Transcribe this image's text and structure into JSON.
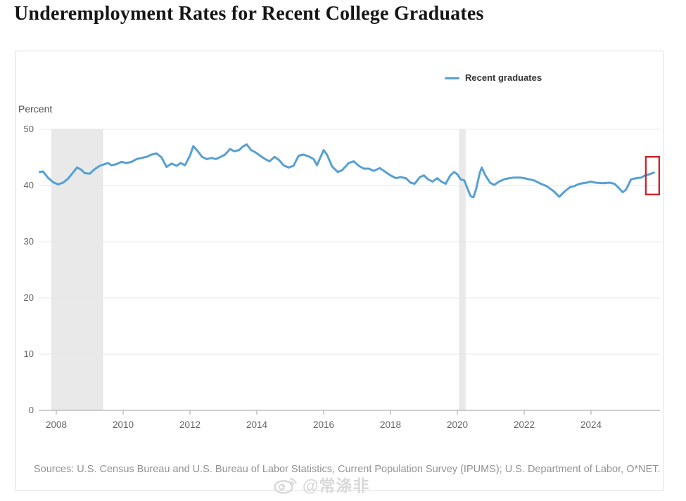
{
  "page": {
    "title": "Underemployment Rates for Recent College Graduates",
    "source_note": "Sources: U.S. Census Bureau and U.S. Bureau of Labor Statistics, Current Population Survey (IPUMS); U.S. Department of Labor, O*NET.",
    "watermark": "@常涤非"
  },
  "chart": {
    "y_axis_label": "Percent",
    "legend": [
      {
        "label": "Recent graduates",
        "color": "#57a0d3"
      }
    ],
    "y_ticks": [
      "50",
      "40",
      "30",
      "20",
      "10",
      "0"
    ],
    "x_ticks": [
      "2008",
      "2010",
      "2012",
      "2014",
      "2016",
      "2018",
      "2020",
      "2022",
      "2024"
    ]
  },
  "chart_data": {
    "type": "line",
    "title": "Underemployment Rates for Recent College Graduates",
    "xlabel": "",
    "ylabel": "Percent",
    "ylim": [
      0,
      50
    ],
    "xlim": [
      2007.4,
      2026.1
    ],
    "grid": "horizontal",
    "legend_position": "top-right",
    "y_tick_values": [
      50,
      40,
      30,
      20,
      10,
      0
    ],
    "x_tick_years": [
      2008,
      2010,
      2012,
      2014,
      2016,
      2018,
      2020,
      2022,
      2024
    ],
    "recession_bands": [
      [
        2007.85,
        2009.4
      ],
      [
        2020.05,
        2020.25
      ]
    ],
    "annotation": {
      "type": "rect",
      "color": "#c9252d",
      "x_range": [
        2025.64,
        2026.04
      ],
      "y_range": [
        38.4,
        45.1
      ],
      "meaning": "highlight of latest readings"
    },
    "series": [
      {
        "name": "Recent graduates",
        "color": "#57a0d3",
        "points": [
          [
            2007.5,
            42.4
          ],
          [
            2007.6,
            42.5
          ],
          [
            2007.75,
            41.4
          ],
          [
            2007.9,
            40.6
          ],
          [
            2008.05,
            40.2
          ],
          [
            2008.2,
            40.5
          ],
          [
            2008.35,
            41.2
          ],
          [
            2008.5,
            42.3
          ],
          [
            2008.62,
            43.2
          ],
          [
            2008.75,
            42.8
          ],
          [
            2008.85,
            42.2
          ],
          [
            2009.0,
            42.1
          ],
          [
            2009.15,
            42.9
          ],
          [
            2009.3,
            43.5
          ],
          [
            2009.45,
            43.8
          ],
          [
            2009.55,
            44.0
          ],
          [
            2009.65,
            43.6
          ],
          [
            2009.8,
            43.8
          ],
          [
            2009.95,
            44.2
          ],
          [
            2010.1,
            44.0
          ],
          [
            2010.25,
            44.2
          ],
          [
            2010.4,
            44.7
          ],
          [
            2010.55,
            44.9
          ],
          [
            2010.7,
            45.1
          ],
          [
            2010.85,
            45.5
          ],
          [
            2011.0,
            45.7
          ],
          [
            2011.15,
            45.0
          ],
          [
            2011.3,
            43.3
          ],
          [
            2011.45,
            43.9
          ],
          [
            2011.6,
            43.5
          ],
          [
            2011.72,
            44.0
          ],
          [
            2011.85,
            43.6
          ],
          [
            2012.0,
            45.3
          ],
          [
            2012.1,
            47.0
          ],
          [
            2012.22,
            46.2
          ],
          [
            2012.36,
            45.1
          ],
          [
            2012.5,
            44.7
          ],
          [
            2012.65,
            44.9
          ],
          [
            2012.78,
            44.7
          ],
          [
            2012.92,
            45.1
          ],
          [
            2013.05,
            45.5
          ],
          [
            2013.2,
            46.5
          ],
          [
            2013.32,
            46.1
          ],
          [
            2013.47,
            46.3
          ],
          [
            2013.6,
            47.0
          ],
          [
            2013.7,
            47.3
          ],
          [
            2013.83,
            46.3
          ],
          [
            2013.96,
            45.9
          ],
          [
            2014.1,
            45.3
          ],
          [
            2014.25,
            44.7
          ],
          [
            2014.38,
            44.3
          ],
          [
            2014.53,
            45.1
          ],
          [
            2014.67,
            44.5
          ],
          [
            2014.8,
            43.6
          ],
          [
            2014.95,
            43.2
          ],
          [
            2015.1,
            43.5
          ],
          [
            2015.25,
            45.3
          ],
          [
            2015.4,
            45.5
          ],
          [
            2015.58,
            45.1
          ],
          [
            2015.7,
            44.7
          ],
          [
            2015.8,
            43.6
          ],
          [
            2016.0,
            46.3
          ],
          [
            2016.1,
            45.5
          ],
          [
            2016.25,
            43.4
          ],
          [
            2016.42,
            42.4
          ],
          [
            2016.55,
            42.7
          ],
          [
            2016.75,
            44.0
          ],
          [
            2016.9,
            44.3
          ],
          [
            2017.05,
            43.5
          ],
          [
            2017.2,
            43.0
          ],
          [
            2017.35,
            43.0
          ],
          [
            2017.5,
            42.6
          ],
          [
            2017.68,
            43.1
          ],
          [
            2017.85,
            42.4
          ],
          [
            2018.0,
            41.8
          ],
          [
            2018.17,
            41.3
          ],
          [
            2018.3,
            41.5
          ],
          [
            2018.46,
            41.3
          ],
          [
            2018.6,
            40.5
          ],
          [
            2018.72,
            40.3
          ],
          [
            2018.88,
            41.5
          ],
          [
            2019.0,
            41.8
          ],
          [
            2019.12,
            41.1
          ],
          [
            2019.26,
            40.7
          ],
          [
            2019.4,
            41.3
          ],
          [
            2019.52,
            40.7
          ],
          [
            2019.65,
            40.3
          ],
          [
            2019.79,
            41.8
          ],
          [
            2019.9,
            42.4
          ],
          [
            2020.0,
            42.0
          ],
          [
            2020.1,
            41.1
          ],
          [
            2020.21,
            40.9
          ],
          [
            2020.3,
            39.5
          ],
          [
            2020.4,
            38.1
          ],
          [
            2020.48,
            37.9
          ],
          [
            2020.56,
            39.3
          ],
          [
            2020.67,
            42.2
          ],
          [
            2020.73,
            43.2
          ],
          [
            2020.84,
            41.8
          ],
          [
            2020.98,
            40.5
          ],
          [
            2021.1,
            40.1
          ],
          [
            2021.25,
            40.7
          ],
          [
            2021.4,
            41.1
          ],
          [
            2021.55,
            41.3
          ],
          [
            2021.7,
            41.4
          ],
          [
            2021.89,
            41.4
          ],
          [
            2022.0,
            41.3
          ],
          [
            2022.15,
            41.1
          ],
          [
            2022.3,
            40.9
          ],
          [
            2022.5,
            40.3
          ],
          [
            2022.67,
            39.9
          ],
          [
            2022.88,
            39.0
          ],
          [
            2023.05,
            38.0
          ],
          [
            2023.22,
            39.0
          ],
          [
            2023.37,
            39.7
          ],
          [
            2023.5,
            39.9
          ],
          [
            2023.65,
            40.3
          ],
          [
            2023.86,
            40.5
          ],
          [
            2024.0,
            40.7
          ],
          [
            2024.14,
            40.5
          ],
          [
            2024.35,
            40.4
          ],
          [
            2024.56,
            40.5
          ],
          [
            2024.7,
            40.3
          ],
          [
            2024.84,
            39.5
          ],
          [
            2024.95,
            38.8
          ],
          [
            2025.05,
            39.3
          ],
          [
            2025.2,
            41.1
          ],
          [
            2025.35,
            41.3
          ],
          [
            2025.5,
            41.4
          ],
          [
            2025.62,
            41.8
          ],
          [
            2025.75,
            42.0
          ],
          [
            2025.88,
            42.3
          ]
        ]
      }
    ]
  }
}
